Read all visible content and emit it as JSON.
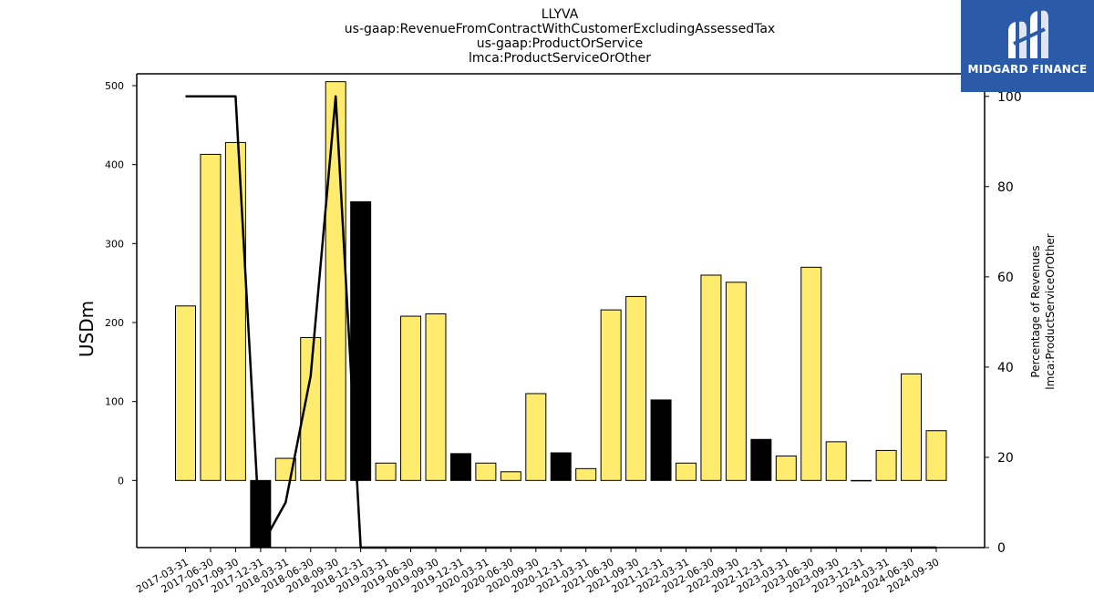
{
  "chart_data": {
    "type": "bar",
    "title_lines": [
      "LLYVA",
      "us-gaap:RevenueFromContractWithCustomerExcludingAssessedTax",
      "us-gaap:ProductOrService",
      "lmca:ProductServiceOrOther"
    ],
    "ylabel": "USDm",
    "y2label_lines": [
      "Percentage of Revenues",
      "lmca:ProductServiceOrOther"
    ],
    "ylim": [
      -85,
      515
    ],
    "y2lim": [
      0,
      105
    ],
    "yticks": [
      "0",
      "100",
      "200",
      "300",
      "400",
      "500"
    ],
    "y2ticks": [
      "0",
      "20",
      "40",
      "60",
      "80",
      "100"
    ],
    "categories": [
      "2017-03-31",
      "2017-06-30",
      "2017-09-30",
      "2017-12-31",
      "2018-03-31",
      "2018-06-30",
      "2018-09-30",
      "2018-12-31",
      "2019-03-31",
      "2019-06-30",
      "2019-09-30",
      "2019-12-31",
      "2020-03-31",
      "2020-06-30",
      "2020-09-30",
      "2020-12-31",
      "2021-03-31",
      "2021-06-30",
      "2021-09-30",
      "2021-12-31",
      "2022-03-31",
      "2022-06-30",
      "2022-09-30",
      "2022-12-31",
      "2023-03-31",
      "2023-06-30",
      "2023-09-30",
      "2023-12-31",
      "2024-03-31",
      "2024-06-30",
      "2024-09-30"
    ],
    "series": [
      {
        "type": "bar",
        "values": [
          221,
          413,
          428,
          -85,
          28,
          181,
          505,
          353,
          22,
          208,
          211,
          34,
          22,
          11,
          110,
          35,
          15,
          216,
          233,
          102,
          22,
          260,
          251,
          52,
          31,
          270,
          49,
          0,
          38,
          135,
          63
        ],
        "highlight": [
          false,
          false,
          false,
          true,
          false,
          false,
          false,
          true,
          false,
          false,
          false,
          true,
          false,
          false,
          false,
          true,
          false,
          false,
          false,
          true,
          false,
          false,
          false,
          true,
          false,
          false,
          false,
          true,
          false,
          false,
          false
        ],
        "color": "#ffec6e",
        "highlight_color": "#000000"
      },
      {
        "type": "line",
        "axis": "right",
        "values": [
          100,
          100,
          100,
          0,
          10,
          38,
          100,
          0,
          0,
          0,
          0,
          0,
          0,
          0,
          0,
          0,
          0,
          0,
          0,
          0,
          0,
          0,
          0,
          0,
          0,
          0,
          0,
          0,
          0,
          0,
          0
        ],
        "color": "#000000"
      }
    ],
    "grid": false
  },
  "logo": {
    "text": "MIDGARD FINANCE",
    "background": "#2a5aa8"
  }
}
